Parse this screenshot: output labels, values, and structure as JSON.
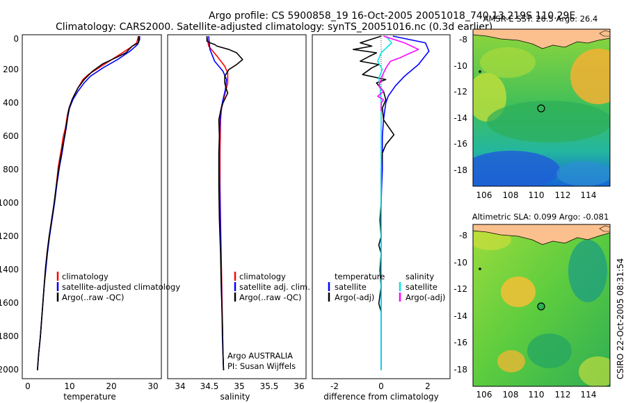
{
  "header": {
    "line1": "Argo profile: CS 5900858_19 16-Oct-2005 20051018_740 13.219S 110.29E",
    "line2": "Climatology: CARS2000. Satellite-adjusted climatology: synTS_20051016.nc (0.3d earlier)"
  },
  "depth_axis": {
    "ticks": [
      "0",
      "200",
      "400",
      "600",
      "800",
      "1000",
      "1200",
      "1400",
      "1600",
      "1800",
      "2000"
    ]
  },
  "colors": {
    "climatology": "#ff0000",
    "satellite": "#0000ff",
    "argo": "#000000",
    "salinity_sat": "#00e5e5",
    "salinity_argo": "#ff00ff"
  },
  "chart_data": [
    {
      "id": "temperature",
      "type": "line",
      "xlabel": "temperature",
      "ylabel": "",
      "xlim": [
        -2,
        31
      ],
      "ylim": [
        2050,
        0
      ],
      "xticks": [
        "0",
        "10",
        "20",
        "30"
      ],
      "legend": [
        "climatology",
        "satellite-adjusted climatology",
        "Argo(..raw -QC)"
      ],
      "series": [
        {
          "name": "climatology",
          "color": "#ff0000",
          "points": [
            [
              26.5,
              0
            ],
            [
              26.1,
              40
            ],
            [
              24.5,
              70
            ],
            [
              22,
              110
            ],
            [
              19.5,
              150
            ],
            [
              17,
              190
            ],
            [
              14.5,
              230
            ],
            [
              13.2,
              260
            ],
            [
              12,
              310
            ],
            [
              10.8,
              370
            ],
            [
              10,
              420
            ],
            [
              9.5,
              470
            ],
            [
              9,
              550
            ],
            [
              8.5,
              600
            ],
            [
              8,
              680
            ],
            [
              7.3,
              780
            ],
            [
              6.8,
              900
            ],
            [
              6.3,
              1000
            ],
            [
              5.7,
              1100
            ],
            [
              5.1,
              1200
            ],
            [
              4.6,
              1300
            ],
            [
              4.2,
              1400
            ],
            [
              3.9,
              1500
            ],
            [
              3.6,
              1600
            ],
            [
              3.3,
              1700
            ],
            [
              3,
              1800
            ],
            [
              2.6,
              1900
            ],
            [
              2.3,
              2000
            ]
          ]
        },
        {
          "name": "satellite-adjusted climatology",
          "color": "#0000ff",
          "points": [
            [
              26.8,
              0
            ],
            [
              26.8,
              20
            ],
            [
              26.3,
              50
            ],
            [
              24.5,
              90
            ],
            [
              21.5,
              140
            ],
            [
              18,
              190
            ],
            [
              15,
              240
            ],
            [
              13.5,
              280
            ],
            [
              12,
              330
            ],
            [
              10.8,
              380
            ],
            [
              10,
              430
            ],
            [
              9.6,
              480
            ],
            [
              9.2,
              550
            ],
            [
              8.7,
              620
            ],
            [
              8.2,
              700
            ],
            [
              7.6,
              780
            ],
            [
              7,
              880
            ],
            [
              6.4,
              1000
            ],
            [
              5.8,
              1100
            ],
            [
              5.2,
              1200
            ],
            [
              4.7,
              1300
            ],
            [
              4.3,
              1400
            ],
            [
              3.9,
              1500
            ],
            [
              3.6,
              1600
            ],
            [
              3.3,
              1700
            ],
            [
              3,
              1800
            ],
            [
              2.6,
              1900
            ],
            [
              2.3,
              2000
            ]
          ]
        },
        {
          "name": "Argo(..raw -QC)",
          "color": "#000000",
          "points": [
            [
              26.6,
              0
            ],
            [
              26.5,
              40
            ],
            [
              25,
              60
            ],
            [
              23.5,
              100
            ],
            [
              21,
              130
            ],
            [
              18,
              165
            ],
            [
              15.5,
              210
            ],
            [
              13.5,
              260
            ],
            [
              12,
              310
            ],
            [
              10.6,
              380
            ],
            [
              9.8,
              440
            ],
            [
              9.3,
              520
            ],
            [
              8.8,
              600
            ],
            [
              8.2,
              680
            ],
            [
              7.5,
              780
            ],
            [
              6.9,
              880
            ],
            [
              6.3,
              1000
            ],
            [
              5.7,
              1100
            ],
            [
              5.1,
              1200
            ],
            [
              4.6,
              1300
            ],
            [
              4.2,
              1400
            ],
            [
              3.9,
              1500
            ],
            [
              3.6,
              1600
            ],
            [
              3.3,
              1700
            ],
            [
              3,
              1800
            ],
            [
              2.6,
              1900
            ],
            [
              2.3,
              2000
            ]
          ]
        }
      ]
    },
    {
      "id": "salinity",
      "type": "line",
      "xlabel": "salinity",
      "xlim": [
        33.85,
        36.1
      ],
      "ylim": [
        2050,
        0
      ],
      "xticks": [
        "34",
        "34.5",
        "35",
        "35.5",
        "36"
      ],
      "legend": [
        "climatology",
        "satellite adj. clim.",
        "Argo(..raw -QC)"
      ],
      "annotation": [
        "Argo AUSTRALIA",
        "PI: Susan Wijffels"
      ],
      "series": [
        {
          "name": "climatology",
          "color": "#ff0000",
          "points": [
            [
              34.45,
              0
            ],
            [
              34.48,
              60
            ],
            [
              34.62,
              120
            ],
            [
              34.75,
              180
            ],
            [
              34.8,
              220
            ],
            [
              34.8,
              280
            ],
            [
              34.75,
              350
            ],
            [
              34.7,
              420
            ],
            [
              34.68,
              500
            ],
            [
              34.67,
              700
            ],
            [
              34.67,
              900
            ],
            [
              34.68,
              1100
            ],
            [
              34.69,
              1300
            ],
            [
              34.7,
              1500
            ],
            [
              34.71,
              1700
            ],
            [
              34.72,
              1900
            ],
            [
              34.73,
              2000
            ]
          ]
        },
        {
          "name": "satellite adj. clim.",
          "color": "#0000ff",
          "points": [
            [
              34.48,
              0
            ],
            [
              34.5,
              80
            ],
            [
              34.58,
              150
            ],
            [
              34.72,
              210
            ],
            [
              34.78,
              260
            ],
            [
              34.76,
              320
            ],
            [
              34.72,
              380
            ],
            [
              34.68,
              450
            ],
            [
              34.66,
              600
            ],
            [
              34.66,
              800
            ],
            [
              34.67,
              1000
            ],
            [
              34.68,
              1200
            ],
            [
              34.69,
              1400
            ],
            [
              34.7,
              1600
            ],
            [
              34.71,
              1800
            ],
            [
              34.73,
              2000
            ]
          ]
        },
        {
          "name": "Argo(..raw -QC)",
          "color": "#000000",
          "points": [
            [
              34.45,
              0
            ],
            [
              34.45,
              30
            ],
            [
              34.5,
              40
            ],
            [
              34.58,
              50
            ],
            [
              34.62,
              60
            ],
            [
              34.82,
              80
            ],
            [
              34.95,
              100
            ],
            [
              35.05,
              140
            ],
            [
              34.95,
              170
            ],
            [
              34.82,
              200
            ],
            [
              34.75,
              240
            ],
            [
              34.75,
              280
            ],
            [
              34.78,
              320
            ],
            [
              34.8,
              340
            ],
            [
              34.72,
              400
            ],
            [
              34.68,
              450
            ],
            [
              34.65,
              500
            ],
            [
              34.66,
              600
            ],
            [
              34.65,
              700
            ],
            [
              34.65,
              900
            ],
            [
              34.66,
              1100
            ],
            [
              34.68,
              1300
            ],
            [
              34.69,
              1500
            ],
            [
              34.71,
              1700
            ],
            [
              34.72,
              1900
            ],
            [
              34.73,
              2000
            ]
          ]
        }
      ]
    },
    {
      "id": "difference",
      "type": "line",
      "xlabel": "difference from climatology",
      "xlim": [
        -3.1,
        3
      ],
      "ylim": [
        2050,
        0
      ],
      "xticks": [
        "-2",
        "0",
        "2"
      ],
      "legend_left": [
        "temperature",
        "satellite",
        "Argo(-adj)"
      ],
      "legend_right": [
        "salinity",
        "satellite",
        "Argo(-adj)"
      ],
      "series": [
        {
          "name": "temperature satellite",
          "color": "#0000ff",
          "points": [
            [
              0.5,
              0
            ],
            [
              1.9,
              40
            ],
            [
              2.05,
              90
            ],
            [
              1.6,
              170
            ],
            [
              1.0,
              240
            ],
            [
              0.6,
              300
            ],
            [
              0.3,
              360
            ],
            [
              0.2,
              400
            ],
            [
              0.15,
              450
            ],
            [
              0.1,
              500
            ],
            [
              0.05,
              600
            ],
            [
              0.05,
              700
            ],
            [
              0.05,
              800
            ],
            [
              0.02,
              900
            ],
            [
              0,
              1000
            ],
            [
              0,
              1100
            ],
            [
              0,
              1200
            ],
            [
              0,
              1400
            ],
            [
              0,
              1600
            ],
            [
              0,
              1800
            ],
            [
              0,
              2000
            ]
          ]
        },
        {
          "name": "temperature Argo(-adj)",
          "color": "#000000",
          "points": [
            [
              0,
              0
            ],
            [
              -0.9,
              40
            ],
            [
              -0.4,
              60
            ],
            [
              -1.2,
              80
            ],
            [
              -0.2,
              100
            ],
            [
              -0.5,
              120
            ],
            [
              -0.9,
              150
            ],
            [
              -0.1,
              170
            ],
            [
              -0.4,
              190
            ],
            [
              -0.8,
              230
            ],
            [
              0.2,
              260
            ],
            [
              -0.2,
              280
            ],
            [
              0.1,
              330
            ],
            [
              0.2,
              380
            ],
            [
              0.05,
              430
            ],
            [
              0.1,
              500
            ],
            [
              0.35,
              550
            ],
            [
              0.55,
              590
            ],
            [
              0.2,
              650
            ],
            [
              0.05,
              700
            ],
            [
              0,
              800
            ],
            [
              0,
              900
            ],
            [
              0,
              1000
            ],
            [
              -0.05,
              1100
            ],
            [
              0,
              1200
            ],
            [
              -0.1,
              1250
            ],
            [
              0,
              1300
            ],
            [
              -0.05,
              1400
            ],
            [
              0,
              1500
            ],
            [
              -0.1,
              1600
            ],
            [
              0,
              1650
            ]
          ]
        },
        {
          "name": "salinity satellite",
          "color": "#00e5e5",
          "points": [
            [
              0.2,
              0
            ],
            [
              0.45,
              40
            ],
            [
              0,
              100
            ],
            [
              -0.15,
              150
            ],
            [
              0.05,
              200
            ],
            [
              -0.1,
              250
            ],
            [
              -0.05,
              300
            ],
            [
              0,
              400
            ],
            [
              0,
              500
            ],
            [
              0,
              800
            ],
            [
              0,
              1000
            ],
            [
              0,
              1200
            ],
            [
              0,
              1500
            ],
            [
              0,
              1800
            ],
            [
              0,
              2000
            ]
          ]
        },
        {
          "name": "salinity Argo(-adj)",
          "color": "#ff00ff",
          "points": [
            [
              0.1,
              0
            ],
            [
              1.0,
              40
            ],
            [
              1.6,
              80
            ],
            [
              1.1,
              110
            ],
            [
              0.8,
              130
            ],
            [
              0.4,
              150
            ],
            [
              0.25,
              180
            ],
            [
              0.1,
              220
            ],
            [
              -0.1,
              300
            ],
            [
              0.1,
              330
            ],
            [
              -0.15,
              360
            ],
            [
              0.1,
              380
            ],
            [
              0,
              400
            ],
            [
              0,
              450
            ]
          ]
        }
      ]
    }
  ],
  "maps": [
    {
      "id": "sst",
      "title": "AMSR-E SST: 26.5 Argo: 26.4",
      "variable": "SST"
    },
    {
      "id": "sla",
      "title": "Altimetric SLA: 0.099 Argo: -0.081",
      "variable": "SLA"
    }
  ],
  "map_axes": {
    "xticks": [
      "106",
      "108",
      "110",
      "112",
      "114"
    ],
    "yticks": [
      "-8",
      "-10",
      "-12",
      "-14",
      "-16",
      "-18"
    ],
    "lon_range": [
      105,
      115.5
    ],
    "lat_range": [
      -19.2,
      -6.9
    ]
  },
  "float_position": {
    "lon": 110.29,
    "lat": -13.219
  },
  "credit": "CSIRO 22-Oct-2005 08:31:54"
}
